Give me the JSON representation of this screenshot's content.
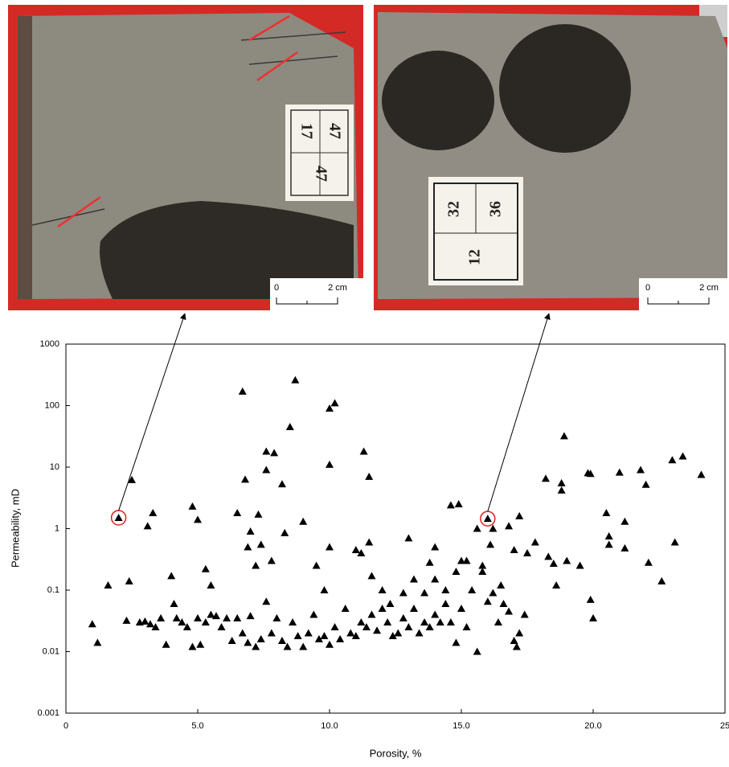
{
  "photos": [
    {
      "cells": [
        "17",
        "47",
        "47"
      ],
      "scale": {
        "zero": "0",
        "length": "2 cm"
      }
    },
    {
      "cells": [
        "32",
        "36",
        "12"
      ],
      "scale": {
        "zero": "0",
        "length": "2 cm"
      }
    }
  ],
  "chart_data": {
    "type": "scatter",
    "x_label": "Porosity, %",
    "y_label": "Permeability, mD",
    "xlim": [
      0,
      25
    ],
    "xticks": [
      0,
      {
        "value": 5,
        "label": "5.0"
      },
      {
        "value": 10,
        "label": "10.0"
      },
      {
        "value": 15,
        "label": "15.0"
      },
      {
        "value": 20,
        "label": "20.0"
      },
      25
    ],
    "ylim": [
      0.001,
      1000
    ],
    "yticks": [
      0.001,
      0.01,
      0.1,
      1,
      10,
      100,
      1000
    ],
    "y_log": true,
    "series": [
      {
        "marker": "triangle",
        "color": "#000000",
        "x": [
          2.0,
          2.5,
          3.1,
          3.3,
          4.0,
          4.8,
          5.0,
          5.3,
          5.5,
          6.5,
          6.7,
          6.8,
          6.9,
          7.0,
          7.2,
          7.3,
          7.4,
          7.6,
          7.6,
          7.8,
          7.9,
          8.2,
          8.3,
          8.5,
          8.7,
          9.0,
          9.5,
          9.8,
          10.0,
          10.0,
          10.0,
          10.2,
          11.0,
          11.2,
          11.3,
          11.5,
          11.5,
          11.6,
          12.0,
          13.0,
          13.2,
          13.8,
          14.0,
          14.6,
          14.9,
          15.2,
          15.6,
          15.8,
          16.0,
          16.2,
          16.1,
          16.5,
          16.8,
          17.0,
          17.2,
          17.5,
          17.8,
          18.2,
          18.3,
          18.5,
          18.6,
          18.8,
          18.8,
          18.9,
          19.0,
          19.5,
          19.8,
          19.9,
          19.9,
          20.0,
          20.5,
          20.6,
          20.6,
          21.0,
          21.2,
          21.2,
          21.8,
          22.0,
          22.1,
          22.6,
          23.0,
          23.1,
          23.4,
          24.1,
          1.0,
          1.2,
          1.6,
          2.4,
          2.3,
          2.8,
          3.0,
          3.2,
          3.4,
          3.6,
          3.8,
          4.1,
          4.2,
          4.4,
          4.6,
          4.8,
          5.0,
          5.1,
          5.3,
          5.5,
          5.7,
          5.9,
          6.1,
          6.3,
          6.5,
          6.7,
          6.9,
          7.0,
          7.2,
          7.4,
          7.6,
          7.8,
          8.0,
          8.2,
          8.4,
          8.6,
          8.8,
          9.0,
          9.2,
          9.4,
          9.6,
          9.8,
          10.0,
          10.2,
          10.4,
          10.6,
          10.8,
          11.0,
          11.2,
          11.4,
          11.6,
          11.8,
          12.0,
          12.2,
          12.4,
          12.6,
          12.8,
          13.0,
          13.2,
          13.4,
          13.6,
          13.8,
          14.0,
          14.2,
          14.4,
          14.6,
          14.8,
          15.0,
          15.2,
          15.4,
          15.6,
          15.8,
          16.0,
          16.2,
          16.4,
          16.6,
          16.8,
          17.0,
          17.1,
          17.4,
          17.2,
          14.0,
          14.4,
          14.8,
          15.0,
          13.6,
          12.8,
          12.3
        ],
        "values": [
          1.5,
          6.2,
          1.1,
          1.8,
          0.17,
          2.3,
          1.4,
          0.22,
          0.12,
          1.8,
          170,
          6.3,
          0.5,
          0.9,
          0.25,
          1.7,
          0.55,
          18,
          9,
          0.3,
          17,
          5.3,
          0.85,
          45,
          260,
          1.3,
          0.25,
          0.1,
          11,
          0.5,
          90,
          110,
          0.45,
          0.4,
          18,
          7,
          0.6,
          0.17,
          0.1,
          0.7,
          0.15,
          0.28,
          0.5,
          2.4,
          2.5,
          0.3,
          1.0,
          0.25,
          1.45,
          1.0,
          0.55,
          0.12,
          1.1,
          0.45,
          1.6,
          0.4,
          0.6,
          6.5,
          0.35,
          0.27,
          0.12,
          5.5,
          4.2,
          32,
          0.3,
          0.25,
          8,
          7.8,
          0.07,
          0.035,
          1.8,
          0.75,
          0.55,
          8.2,
          1.3,
          0.48,
          9,
          5.2,
          0.28,
          0.14,
          13,
          0.6,
          15,
          7.5,
          0.028,
          0.014,
          0.12,
          0.14,
          0.032,
          0.03,
          0.031,
          0.028,
          0.025,
          0.035,
          0.013,
          0.06,
          0.035,
          0.03,
          0.025,
          0.012,
          0.035,
          0.013,
          0.03,
          0.04,
          0.038,
          0.025,
          0.035,
          0.015,
          0.035,
          0.02,
          0.014,
          0.038,
          0.012,
          0.016,
          0.065,
          0.02,
          0.035,
          0.015,
          0.012,
          0.03,
          0.018,
          0.012,
          0.02,
          0.04,
          0.016,
          0.018,
          0.013,
          0.025,
          0.016,
          0.05,
          0.02,
          0.018,
          0.03,
          0.025,
          0.04,
          0.022,
          0.05,
          0.03,
          0.018,
          0.02,
          0.035,
          0.025,
          0.05,
          0.02,
          0.03,
          0.025,
          0.04,
          0.03,
          0.06,
          0.03,
          0.014,
          0.05,
          0.025,
          0.1,
          0.01,
          0.2,
          0.065,
          0.09,
          0.03,
          0.06,
          0.045,
          0.015,
          0.012,
          0.04,
          0.02,
          0.15,
          0.1,
          0.2,
          0.3,
          0.09,
          0.09,
          0.06
        ]
      }
    ]
  }
}
